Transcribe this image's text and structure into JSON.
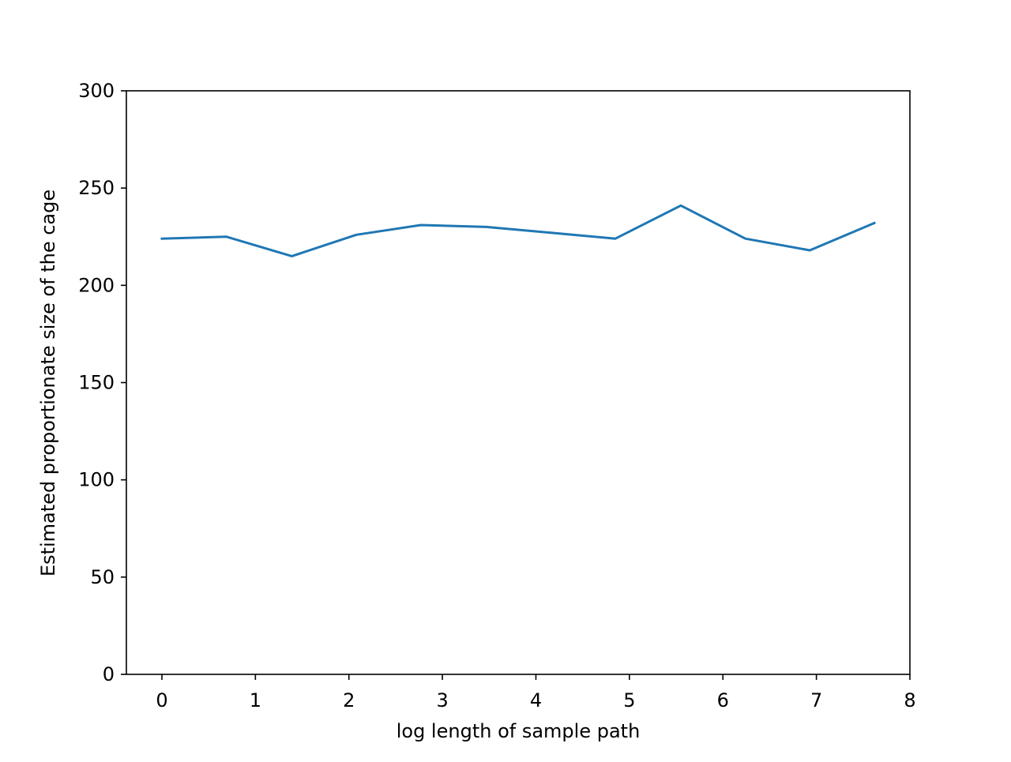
{
  "chart_data": {
    "type": "line",
    "title": "",
    "xlabel": "log length of sample path",
    "ylabel": "Estimated proportionate size of the cage",
    "xlim": [
      -0.38,
      8.0
    ],
    "ylim": [
      0,
      300
    ],
    "x_ticks": [
      0,
      1,
      2,
      3,
      4,
      5,
      6,
      7,
      8
    ],
    "x_tick_labels": [
      "0",
      "1",
      "2",
      "3",
      "4",
      "5",
      "6",
      "7",
      "8"
    ],
    "y_ticks": [
      0,
      50,
      100,
      150,
      200,
      250,
      300
    ],
    "y_tick_labels": [
      "0",
      "50",
      "100",
      "150",
      "200",
      "250",
      "300"
    ],
    "grid": false,
    "series": [
      {
        "color": "#1f77b4",
        "x": [
          0,
          0.69,
          1.39,
          2.08,
          2.77,
          3.47,
          4.16,
          4.85,
          5.55,
          6.24,
          6.93,
          7.62
        ],
        "y": [
          224,
          225,
          215,
          226,
          231,
          230,
          227,
          224,
          241,
          224,
          218,
          232
        ]
      }
    ]
  }
}
